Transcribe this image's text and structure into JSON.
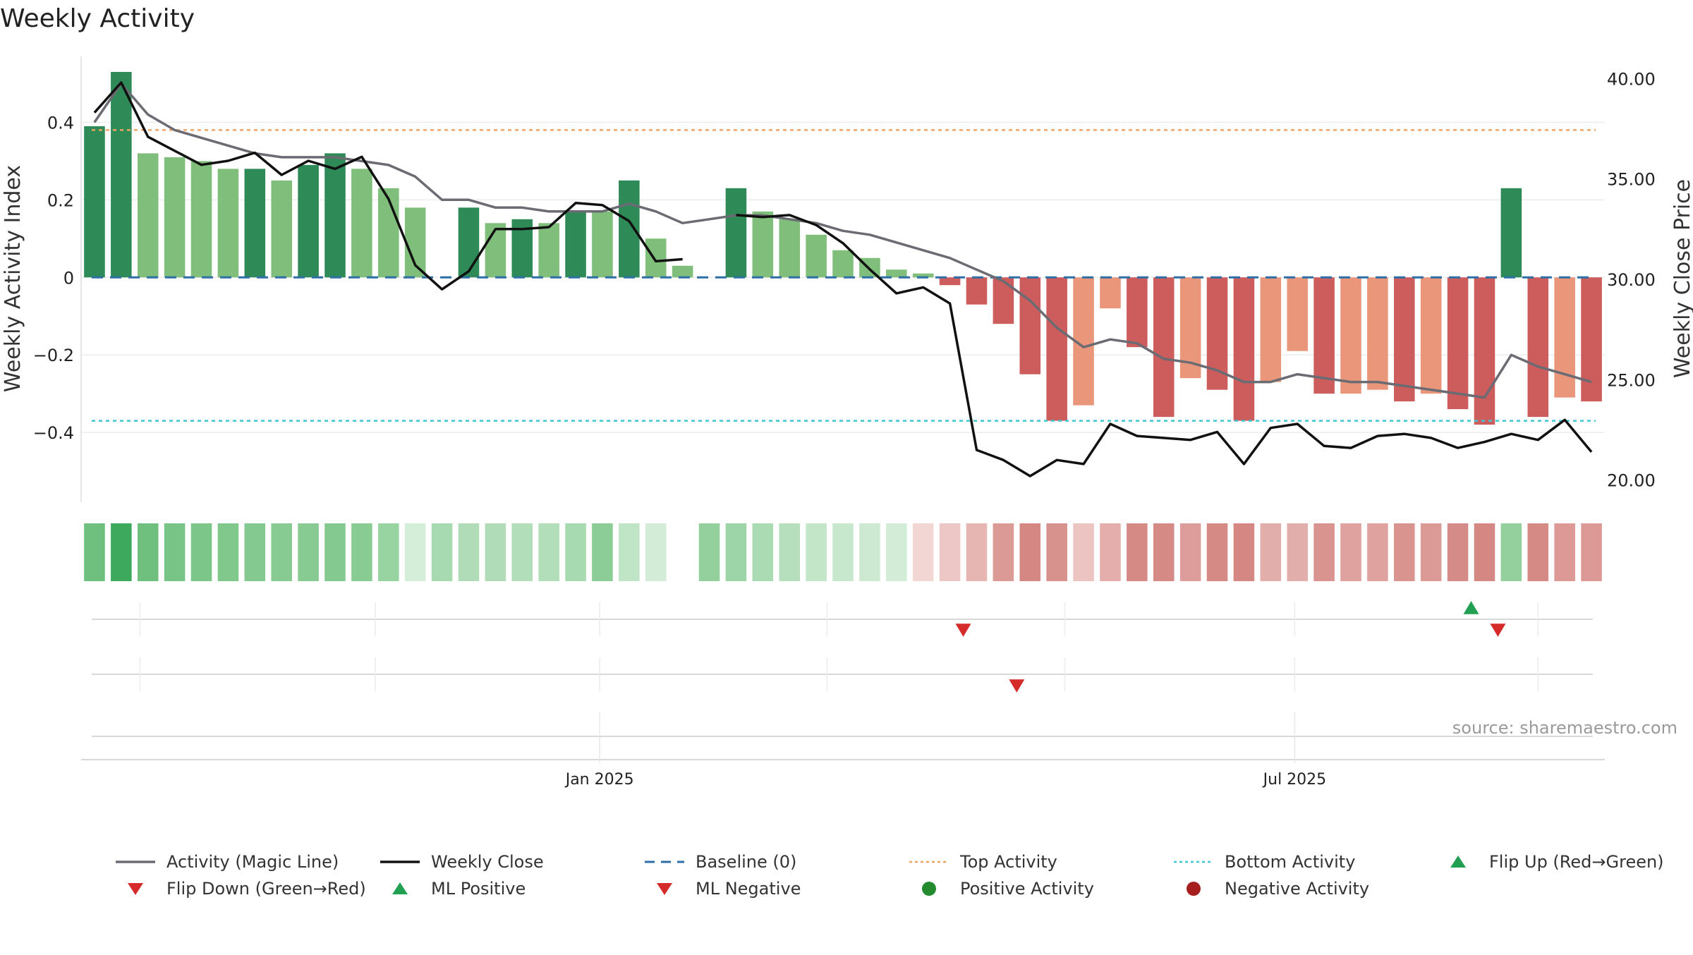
{
  "chart_data": {
    "type": "bar",
    "title": "Weekly Activity",
    "ylabel": "Weekly Activity Index",
    "y2label": "Weekly Close Price",
    "source": "source: sharemaestro.com",
    "ylim": [
      -0.58,
      0.57
    ],
    "y2lim": [
      18.9,
      41.1
    ],
    "y_ticks": [
      0.4,
      0.2,
      0,
      -0.2,
      -0.4
    ],
    "y_tick_labels": [
      "0.4",
      "0.2",
      "0",
      "−0.2",
      "−0.4"
    ],
    "y2_ticks": [
      40,
      35,
      30,
      25,
      20
    ],
    "y2_tick_labels": [
      "40.00",
      "35.00",
      "30.00",
      "25.00",
      "20.00"
    ],
    "x_labels": [
      {
        "week": 19.4,
        "label": "Jan 2025"
      },
      {
        "week": 45.4,
        "label": "Jul 2025"
      }
    ],
    "baseline": 0,
    "top_activity": 0.38,
    "bottom_activity": -0.37,
    "weeks": 57,
    "activity": [
      0.39,
      0.53,
      0.32,
      0.31,
      0.3,
      0.28,
      0.28,
      0.25,
      0.29,
      0.32,
      0.28,
      0.23,
      0.18,
      null,
      0.18,
      0.14,
      0.15,
      0.14,
      0.17,
      0.17,
      0.25,
      0.1,
      0.03,
      null,
      0.23,
      0.17,
      0.15,
      0.11,
      0.07,
      0.05,
      0.02,
      0.01,
      -0.02,
      -0.07,
      -0.12,
      -0.25,
      -0.37,
      -0.33,
      -0.08,
      -0.18,
      -0.36,
      -0.26,
      -0.29,
      -0.37,
      -0.27,
      -0.19,
      -0.3,
      -0.3,
      -0.29,
      -0.32,
      -0.3,
      -0.34,
      -0.38,
      0.23,
      -0.36,
      -0.31,
      -0.32
    ],
    "activity_strong": [
      true,
      true,
      false,
      false,
      false,
      false,
      true,
      false,
      true,
      true,
      false,
      false,
      false,
      false,
      true,
      false,
      true,
      false,
      true,
      false,
      true,
      false,
      false,
      false,
      true,
      false,
      false,
      false,
      false,
      false,
      false,
      false,
      true,
      true,
      true,
      true,
      true,
      false,
      false,
      true,
      true,
      false,
      true,
      true,
      false,
      false,
      true,
      false,
      false,
      true,
      false,
      true,
      true,
      true,
      true,
      false,
      true
    ],
    "magic_line": [
      0.4,
      0.5,
      0.42,
      0.38,
      0.36,
      0.34,
      0.32,
      0.31,
      0.31,
      0.31,
      0.3,
      0.29,
      0.26,
      0.2,
      0.2,
      0.18,
      0.18,
      0.17,
      0.17,
      0.17,
      0.19,
      0.17,
      0.14,
      0.15,
      0.16,
      0.16,
      0.15,
      0.14,
      0.12,
      0.11,
      0.09,
      0.07,
      0.05,
      0.02,
      -0.01,
      -0.06,
      -0.13,
      -0.18,
      -0.16,
      -0.17,
      -0.21,
      -0.22,
      -0.24,
      -0.27,
      -0.27,
      -0.25,
      -0.26,
      -0.27,
      -0.27,
      -0.28,
      -0.29,
      -0.3,
      -0.31,
      -0.2,
      -0.23,
      -0.25,
      -0.27
    ],
    "weekly_close": [
      38.3,
      39.8,
      37.1,
      36.4,
      35.7,
      35.9,
      36.3,
      35.2,
      35.9,
      35.5,
      36.1,
      34.0,
      30.7,
      29.5,
      30.4,
      32.5,
      32.5,
      32.6,
      33.8,
      33.7,
      32.9,
      30.9,
      31.0,
      null,
      33.2,
      33.1,
      33.2,
      32.7,
      31.8,
      30.5,
      29.3,
      29.6,
      28.8,
      21.5,
      21.0,
      20.2,
      21.0,
      20.8,
      22.8,
      22.2,
      22.1,
      22.0,
      22.4,
      20.8,
      22.6,
      22.8,
      21.7,
      21.6,
      22.2,
      22.3,
      22.1,
      21.6,
      21.9,
      22.3,
      22.0,
      23.0,
      21.4
    ],
    "heat_strip": [
      "#6fc07e",
      "#3da95c",
      "#6fc07e",
      "#78c386",
      "#7cc689",
      "#80c88c",
      "#84ca90",
      "#87cb93",
      "#87cb93",
      "#84ca90",
      "#88cc94",
      "#98d3a2",
      "#d4eed9",
      "#a8dab1",
      "#b0ddb8",
      "#b0ddb8",
      "#b2dfba",
      "#b2dfba",
      "#a8dab1",
      "#8ccd97",
      "#bfe4c6",
      "#d2ecd7",
      null,
      "#93d09e",
      "#9ed5a8",
      "#abdbb3",
      "#b6e0bd",
      "#c3e6c9",
      "#c8e8ce",
      "#cde9d2",
      "#d2ecd7",
      "#f2d6d4",
      "#edc7c5",
      "#e6b6b3",
      "#dc9a97",
      "#d48783",
      "#d7928e",
      "#ecc5c3",
      "#e3aeab",
      "#d58a86",
      "#d58a86",
      "#dd9d9a",
      "#d58a86",
      "#d48783",
      "#e2aeab",
      "#e2aeab",
      "#da9490",
      "#e0a29f",
      "#e0a29f",
      "#da9490",
      "#dc9a97",
      "#d58c88",
      "#d48783",
      "#93d09e",
      "#d58a86",
      "#dd9995",
      "#dd9995"
    ],
    "flip_down_row1": [
      32.5,
      52.5
    ],
    "flip_up_row1": [
      51.5
    ],
    "ml_negative_row2": [
      34.5
    ],
    "row_grid_weeks": [
      2.2,
      11.0,
      19.4,
      27.9,
      36.8,
      45.4,
      54.5
    ]
  },
  "legend": [
    {
      "label": "Activity (Magic Line)",
      "kind": "line",
      "color": "#6b6b73"
    },
    {
      "label": "Weekly Close",
      "kind": "line",
      "color": "#111111"
    },
    {
      "label": "Baseline (0)",
      "kind": "dash",
      "color": "#2f6fa8"
    },
    {
      "label": "Top Activity",
      "kind": "dot",
      "color": "#f0a464"
    },
    {
      "label": "Bottom Activity",
      "kind": "dot",
      "color": "#3fc7d4"
    },
    {
      "label": "Flip Up (Red→Green)",
      "kind": "tri-up",
      "color": "#22a052"
    },
    {
      "label": "Flip Down (Green→Red)",
      "kind": "tri-down",
      "color": "#d62b2b"
    },
    {
      "label": "ML Positive",
      "kind": "tri-up",
      "color": "#22a052"
    },
    {
      "label": "ML Negative",
      "kind": "tri-down",
      "color": "#d62b2b"
    },
    {
      "label": "Positive Activity",
      "kind": "circle",
      "color": "#238a2e"
    },
    {
      "label": "Negative Activity",
      "kind": "circle",
      "color": "#a61e1e"
    }
  ],
  "colors": {
    "bar_strong_pos": "#2e8b57",
    "bar_light_pos": "#7fbf7b",
    "bar_strong_neg": "#cd5c5c",
    "bar_light_neg": "#e9967a",
    "magic_line": "#6b6b73",
    "close_line": "#111111",
    "grid": "#ececec"
  }
}
